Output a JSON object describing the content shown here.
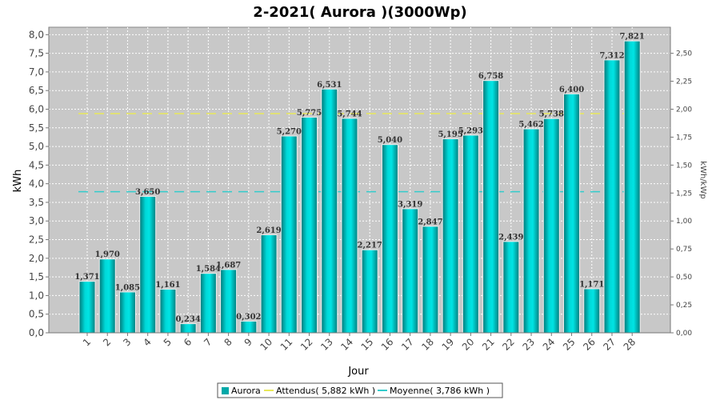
{
  "chart_data": {
    "type": "bar",
    "title": "2-2021( Aurora )(3000Wp)",
    "xlabel": "Jour",
    "ylabel": "kWh",
    "y2label": "kWh/kWp",
    "ylim": [
      0,
      8.2
    ],
    "y2lim": [
      0,
      2.7333
    ],
    "yticks": [
      "0,0",
      "0,5",
      "1,0",
      "1,5",
      "2,0",
      "2,5",
      "3,0",
      "3,5",
      "4,0",
      "4,5",
      "5,0",
      "5,5",
      "6,0",
      "6,5",
      "7,0",
      "7,5",
      "8,0"
    ],
    "y2ticks": [
      "0,00",
      "0,25",
      "0,50",
      "0,75",
      "1,00",
      "1,25",
      "1,50",
      "1,75",
      "2,00",
      "2,25",
      "2,50"
    ],
    "categories": [
      "1",
      "2",
      "3",
      "4",
      "5",
      "6",
      "7",
      "8",
      "9",
      "10",
      "11",
      "12",
      "13",
      "14",
      "15",
      "16",
      "17",
      "18",
      "19",
      "20",
      "21",
      "22",
      "23",
      "24",
      "25",
      "26",
      "27",
      "28"
    ],
    "series": [
      {
        "name": "Aurora",
        "values": [
          1.371,
          1.97,
          1.085,
          3.65,
          1.161,
          0.234,
          1.584,
          1.687,
          0.302,
          2.619,
          5.27,
          5.775,
          6.531,
          5.744,
          2.217,
          5.04,
          3.319,
          2.847,
          5.195,
          5.293,
          6.758,
          2.439,
          5.462,
          5.738,
          6.4,
          1.171,
          7.312,
          7.821
        ],
        "labels": [
          "1,371",
          "1,970",
          "1,085",
          "3,650",
          "1,161",
          "0,234",
          "1,584",
          "1,687",
          "0,302",
          "2,619",
          "5,270",
          "5,775",
          "6,531",
          "5,744",
          "2,217",
          "5,040",
          "3,319",
          "2,847",
          "5,195",
          "5,293",
          "6,758",
          "2,439",
          "5,462",
          "5,738",
          "6,400",
          "1,171",
          "7,312",
          "7,821"
        ],
        "color": "#00a8a8"
      }
    ],
    "reference_lines": [
      {
        "name": "Attendus( 5,882 kWh )",
        "value": 5.882,
        "color": "#e8e85a"
      },
      {
        "name": "Moyenne( 3,786 kWh )",
        "value": 3.786,
        "color": "#33cccc"
      }
    ],
    "grid": true,
    "legend_position": "bottom",
    "plot_background": "#c8c8c8"
  }
}
